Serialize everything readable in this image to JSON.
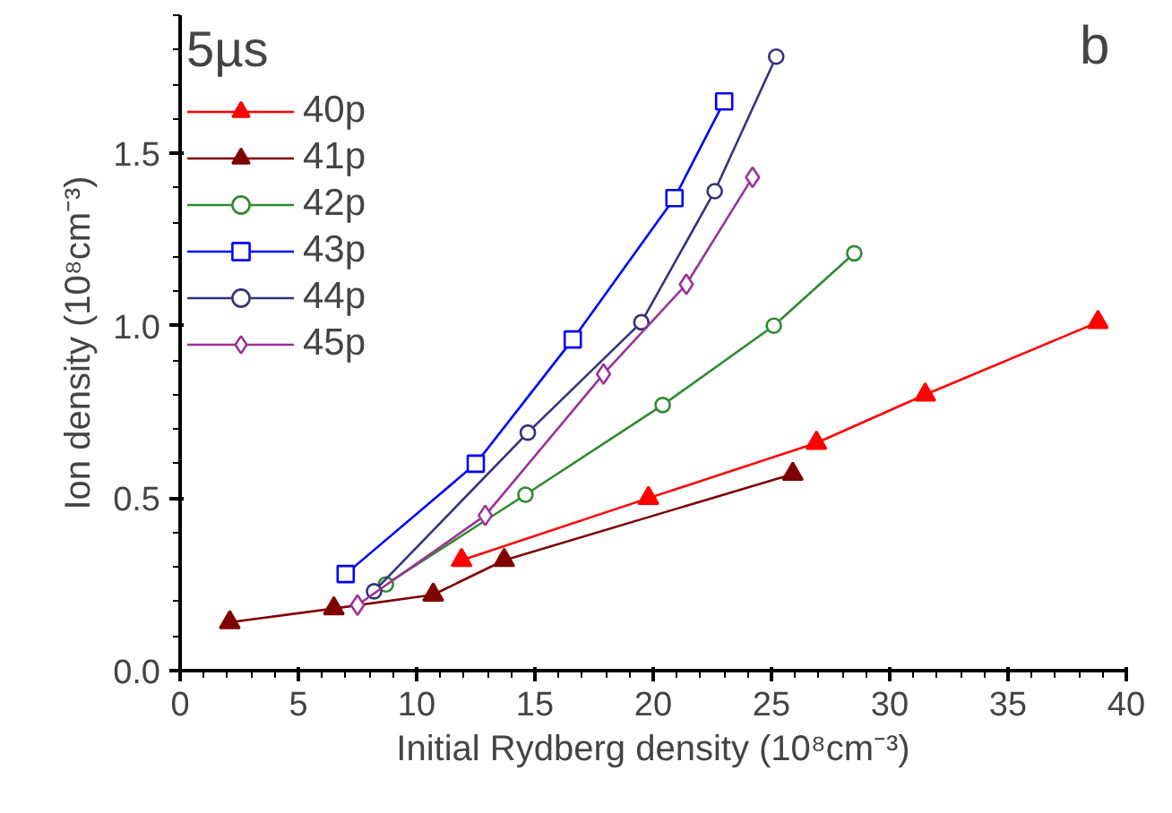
{
  "chart_data": {
    "type": "line",
    "xlabel": "Initial Rydberg density (10⁸cm⁻³)",
    "ylabel": "Ion density (10⁸cm⁻³)",
    "legend_title": "5µs",
    "annotations": [
      "b"
    ],
    "xlim": [
      0,
      40
    ],
    "xticks": [
      0,
      5,
      10,
      15,
      20,
      25,
      30,
      35,
      40
    ],
    "ylim": [
      0,
      1.9
    ],
    "yticks": [
      {
        "value": 0,
        "label": "0.0"
      },
      {
        "value": 0.5,
        "label": "0.5"
      },
      {
        "value": 1,
        "label": "1.0"
      },
      {
        "value": 1.5,
        "label": "1.5"
      }
    ],
    "grid": false,
    "legend": "top left",
    "line_style": "solid",
    "series": [
      {
        "name": "40p",
        "color": "#ff0000",
        "marker": "triangle",
        "x": [
          11.9,
          19.8,
          26.9,
          31.5,
          38.8
        ],
        "values": [
          0.32,
          0.5,
          0.66,
          0.8,
          1.01
        ]
      },
      {
        "name": "41p",
        "color": "#7f0000",
        "marker": "triangle",
        "x": [
          2.1,
          6.5,
          10.7,
          13.7,
          25.9
        ],
        "values": [
          0.14,
          0.18,
          0.22,
          0.32,
          0.57
        ]
      },
      {
        "name": "42p",
        "color": "#2e8b2e",
        "marker": "circle",
        "x": [
          8.7,
          14.6,
          20.4,
          25.1,
          28.5
        ],
        "values": [
          0.25,
          0.51,
          0.77,
          1.0,
          1.21
        ]
      },
      {
        "name": "43p",
        "color": "#0000ff",
        "marker": "square",
        "x": [
          7.0,
          12.5,
          16.6,
          20.9,
          23.0
        ],
        "values": [
          0.28,
          0.6,
          0.96,
          1.37,
          1.65
        ]
      },
      {
        "name": "44p",
        "color": "#333380",
        "marker": "circle",
        "x": [
          8.2,
          14.7,
          19.5,
          22.6,
          25.2
        ],
        "values": [
          0.23,
          0.69,
          1.01,
          1.39,
          1.78
        ]
      },
      {
        "name": "45p",
        "color": "#993399",
        "marker": "diamond",
        "x": [
          7.5,
          12.9,
          17.9,
          21.4,
          24.2
        ],
        "values": [
          0.19,
          0.45,
          0.86,
          1.12,
          1.43
        ]
      }
    ]
  }
}
